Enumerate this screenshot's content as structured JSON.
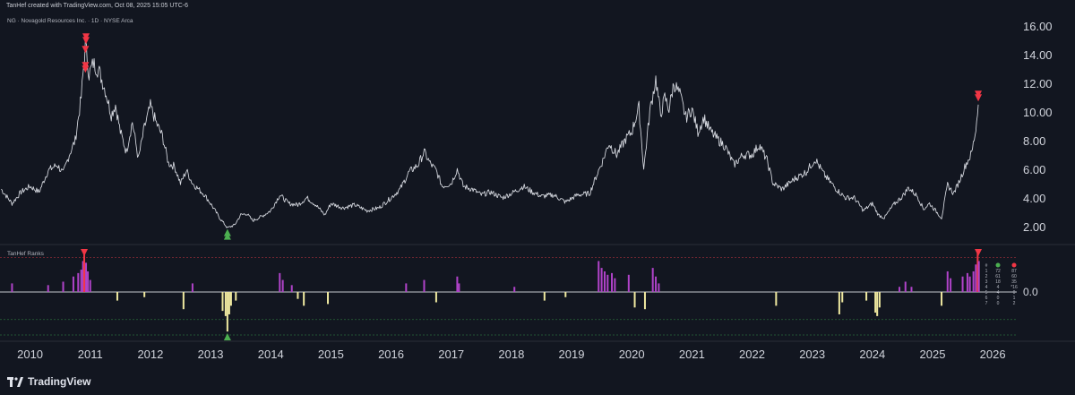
{
  "header": {
    "credit": "TanHef created with TradingView.com, Oct 08, 2025 15:05 UTC-6"
  },
  "main_pane": {
    "symbol_label": "NG · Novagold Resources Inc. · 1D · NYSE Arca"
  },
  "indicator_pane": {
    "label": "TanHef Ranks",
    "zero_label": "0.0"
  },
  "footer": {
    "brand": "TradingView"
  },
  "colors": {
    "background": "#121620",
    "price_line": "#d8dbe2",
    "sell_signal": "#f23645",
    "buy_signal": "#4caf50",
    "pos_bar": "#b043c9",
    "neg_bar": "#efe9a0"
  },
  "chart_data": [
    {
      "type": "line",
      "title": "NG · Novagold Resources Inc. · 1D · NYSE Arca",
      "ylim": [
        0.8,
        16.8
      ],
      "y_ticks": [
        2,
        4,
        6,
        8,
        10,
        12,
        14,
        16
      ],
      "y_tick_labels": [
        "2.00",
        "4.00",
        "6.00",
        "8.00",
        "10.00",
        "12.00",
        "14.00",
        "16.00"
      ],
      "x_range": [
        2009.5,
        2026.4
      ],
      "x_ticks": [
        2010,
        2011,
        2012,
        2013,
        2014,
        2015,
        2016,
        2017,
        2018,
        2019,
        2020,
        2021,
        2022,
        2023,
        2024,
        2025,
        2026
      ],
      "x_tick_labels": [
        "2010",
        "2011",
        "2012",
        "2013",
        "2014",
        "2015",
        "2016",
        "2017",
        "2018",
        "2019",
        "2020",
        "2021",
        "2022",
        "2023",
        "2024",
        "2025",
        "2026"
      ],
      "series": [
        {
          "points": [
            [
              2009.52,
              4.6
            ],
            [
              2009.7,
              3.6
            ],
            [
              2009.85,
              4.4
            ],
            [
              2010.0,
              4.8
            ],
            [
              2010.15,
              4.4
            ],
            [
              2010.3,
              5.9
            ],
            [
              2010.45,
              6.3
            ],
            [
              2010.55,
              5.7
            ],
            [
              2010.65,
              7.0
            ],
            [
              2010.75,
              8.0
            ],
            [
              2010.85,
              11.0
            ],
            [
              2010.92,
              14.8
            ],
            [
              2010.98,
              12.6
            ],
            [
              2011.05,
              13.4
            ],
            [
              2011.15,
              12.8
            ],
            [
              2011.25,
              11.5
            ],
            [
              2011.35,
              9.8
            ],
            [
              2011.42,
              10.5
            ],
            [
              2011.5,
              8.6
            ],
            [
              2011.6,
              7.2
            ],
            [
              2011.7,
              9.3
            ],
            [
              2011.8,
              6.7
            ],
            [
              2011.9,
              8.9
            ],
            [
              2012.0,
              10.4
            ],
            [
              2012.1,
              9.2
            ],
            [
              2012.2,
              8.3
            ],
            [
              2012.3,
              6.4
            ],
            [
              2012.4,
              6.2
            ],
            [
              2012.5,
              5.0
            ],
            [
              2012.6,
              5.9
            ],
            [
              2012.7,
              5.0
            ],
            [
              2012.8,
              4.6
            ],
            [
              2012.9,
              4.2
            ],
            [
              2013.0,
              3.6
            ],
            [
              2013.15,
              2.6
            ],
            [
              2013.28,
              1.9
            ],
            [
              2013.4,
              2.1
            ],
            [
              2013.5,
              2.8
            ],
            [
              2013.6,
              2.9
            ],
            [
              2013.7,
              2.4
            ],
            [
              2013.85,
              2.7
            ],
            [
              2014.0,
              3.1
            ],
            [
              2014.15,
              4.2
            ],
            [
              2014.3,
              3.6
            ],
            [
              2014.45,
              3.5
            ],
            [
              2014.6,
              4.0
            ],
            [
              2014.75,
              3.5
            ],
            [
              2014.9,
              2.8
            ],
            [
              2015.0,
              3.6
            ],
            [
              2015.2,
              3.3
            ],
            [
              2015.4,
              3.5
            ],
            [
              2015.6,
              3.1
            ],
            [
              2015.8,
              3.3
            ],
            [
              2016.0,
              4.0
            ],
            [
              2016.15,
              4.6
            ],
            [
              2016.3,
              5.8
            ],
            [
              2016.45,
              6.3
            ],
            [
              2016.55,
              7.2
            ],
            [
              2016.65,
              6.4
            ],
            [
              2016.75,
              5.9
            ],
            [
              2016.85,
              4.8
            ],
            [
              2017.0,
              5.0
            ],
            [
              2017.1,
              6.0
            ],
            [
              2017.2,
              4.8
            ],
            [
              2017.35,
              4.6
            ],
            [
              2017.5,
              4.2
            ],
            [
              2017.65,
              4.4
            ],
            [
              2017.85,
              4.0
            ],
            [
              2018.0,
              4.3
            ],
            [
              2018.2,
              4.8
            ],
            [
              2018.35,
              4.4
            ],
            [
              2018.5,
              4.1
            ],
            [
              2018.7,
              4.2
            ],
            [
              2018.9,
              3.7
            ],
            [
              2019.1,
              4.2
            ],
            [
              2019.3,
              4.3
            ],
            [
              2019.42,
              5.6
            ],
            [
              2019.52,
              6.6
            ],
            [
              2019.62,
              7.8
            ],
            [
              2019.75,
              7.0
            ],
            [
              2019.9,
              8.1
            ],
            [
              2020.0,
              8.6
            ],
            [
              2020.12,
              10.3
            ],
            [
              2020.2,
              6.0
            ],
            [
              2020.3,
              10.0
            ],
            [
              2020.4,
              12.3
            ],
            [
              2020.48,
              9.8
            ],
            [
              2020.55,
              11.0
            ],
            [
              2020.62,
              10.2
            ],
            [
              2020.7,
              12.0
            ],
            [
              2020.8,
              11.2
            ],
            [
              2020.9,
              9.6
            ],
            [
              2021.0,
              10.2
            ],
            [
              2021.1,
              8.6
            ],
            [
              2021.2,
              9.6
            ],
            [
              2021.3,
              8.7
            ],
            [
              2021.4,
              8.2
            ],
            [
              2021.55,
              7.6
            ],
            [
              2021.7,
              6.3
            ],
            [
              2021.85,
              7.0
            ],
            [
              2022.0,
              7.0
            ],
            [
              2022.12,
              7.7
            ],
            [
              2022.25,
              6.6
            ],
            [
              2022.35,
              5.0
            ],
            [
              2022.5,
              4.6
            ],
            [
              2022.7,
              5.3
            ],
            [
              2022.9,
              5.8
            ],
            [
              2023.05,
              6.7
            ],
            [
              2023.2,
              5.6
            ],
            [
              2023.4,
              4.6
            ],
            [
              2023.55,
              4.0
            ],
            [
              2023.7,
              4.0
            ],
            [
              2023.85,
              3.1
            ],
            [
              2024.0,
              3.6
            ],
            [
              2024.1,
              2.8
            ],
            [
              2024.2,
              2.6
            ],
            [
              2024.35,
              3.5
            ],
            [
              2024.5,
              4.1
            ],
            [
              2024.6,
              4.7
            ],
            [
              2024.75,
              4.1
            ],
            [
              2024.85,
              3.2
            ],
            [
              2024.95,
              3.6
            ],
            [
              2025.05,
              3.1
            ],
            [
              2025.15,
              2.6
            ],
            [
              2025.25,
              4.9
            ],
            [
              2025.35,
              4.3
            ],
            [
              2025.45,
              5.2
            ],
            [
              2025.55,
              6.3
            ],
            [
              2025.65,
              7.1
            ],
            [
              2025.72,
              8.8
            ],
            [
              2025.76,
              10.5
            ]
          ]
        }
      ],
      "signals": [
        {
          "x": 2010.93,
          "y": 15.1,
          "kind": "sell",
          "label": "double-down"
        },
        {
          "x": 2010.92,
          "y": 14.35,
          "kind": "sell",
          "label": "down"
        },
        {
          "x": 2010.92,
          "y": 13.1,
          "kind": "sell",
          "label": "double-down"
        },
        {
          "x": 2013.28,
          "y": 1.45,
          "kind": "buy",
          "label": "double-up"
        },
        {
          "x": 2025.76,
          "y": 11.1,
          "kind": "sell",
          "label": "double-down"
        }
      ]
    },
    {
      "type": "bar",
      "title": "TanHef Ranks",
      "ylim": [
        -2.5,
        2.5
      ],
      "zero_label": "0.0",
      "reference_levels": [
        2,
        -1.6,
        -2.5
      ],
      "bars": [
        {
          "x": 2009.7,
          "v": 0.5
        },
        {
          "x": 2010.3,
          "v": 0.4
        },
        {
          "x": 2010.55,
          "v": 0.6
        },
        {
          "x": 2010.72,
          "v": 0.9
        },
        {
          "x": 2010.8,
          "v": 1.1
        },
        {
          "x": 2010.85,
          "v": 1.3
        },
        {
          "x": 2010.88,
          "v": 1.8
        },
        {
          "x": 2010.9,
          "v": 2.3
        },
        {
          "x": 2010.93,
          "v": 1.7
        },
        {
          "x": 2010.96,
          "v": 1.2
        },
        {
          "x": 2011.0,
          "v": 0.7
        },
        {
          "x": 2011.45,
          "v": -0.5
        },
        {
          "x": 2011.9,
          "v": -0.3
        },
        {
          "x": 2012.55,
          "v": -1.0
        },
        {
          "x": 2012.7,
          "v": 0.5
        },
        {
          "x": 2013.2,
          "v": -1.1
        },
        {
          "x": 2013.25,
          "v": -1.4
        },
        {
          "x": 2013.28,
          "v": -2.3
        },
        {
          "x": 2013.31,
          "v": -1.3
        },
        {
          "x": 2013.34,
          "v": -0.8
        },
        {
          "x": 2013.42,
          "v": -0.5
        },
        {
          "x": 2014.15,
          "v": 1.1
        },
        {
          "x": 2014.2,
          "v": 0.7
        },
        {
          "x": 2014.35,
          "v": 0.4
        },
        {
          "x": 2014.45,
          "v": -0.4
        },
        {
          "x": 2014.55,
          "v": -0.8
        },
        {
          "x": 2014.95,
          "v": -0.7
        },
        {
          "x": 2016.25,
          "v": 0.5
        },
        {
          "x": 2016.55,
          "v": 0.7
        },
        {
          "x": 2016.75,
          "v": -0.6
        },
        {
          "x": 2017.1,
          "v": 0.9
        },
        {
          "x": 2017.13,
          "v": 0.5
        },
        {
          "x": 2018.05,
          "v": 0.3
        },
        {
          "x": 2018.55,
          "v": -0.5
        },
        {
          "x": 2018.9,
          "v": -0.3
        },
        {
          "x": 2019.45,
          "v": 1.8
        },
        {
          "x": 2019.5,
          "v": 1.4
        },
        {
          "x": 2019.55,
          "v": 1.2
        },
        {
          "x": 2019.6,
          "v": 1.0
        },
        {
          "x": 2019.67,
          "v": 1.1
        },
        {
          "x": 2019.72,
          "v": 0.8
        },
        {
          "x": 2019.95,
          "v": 1.0
        },
        {
          "x": 2020.05,
          "v": -0.9
        },
        {
          "x": 2020.22,
          "v": -1.0
        },
        {
          "x": 2020.35,
          "v": 1.4
        },
        {
          "x": 2020.4,
          "v": 0.9
        },
        {
          "x": 2020.45,
          "v": 0.5
        },
        {
          "x": 2022.4,
          "v": -0.8
        },
        {
          "x": 2023.45,
          "v": -1.3
        },
        {
          "x": 2023.5,
          "v": -0.6
        },
        {
          "x": 2023.9,
          "v": -0.5
        },
        {
          "x": 2024.05,
          "v": -1.2
        },
        {
          "x": 2024.08,
          "v": -1.4
        },
        {
          "x": 2024.12,
          "v": -0.9
        },
        {
          "x": 2024.45,
          "v": 0.3
        },
        {
          "x": 2024.55,
          "v": 0.6
        },
        {
          "x": 2024.65,
          "v": 0.3
        },
        {
          "x": 2025.15,
          "v": -0.8
        },
        {
          "x": 2025.25,
          "v": 1.2
        },
        {
          "x": 2025.3,
          "v": 0.8
        },
        {
          "x": 2025.5,
          "v": 0.9
        },
        {
          "x": 2025.58,
          "v": 1.1
        },
        {
          "x": 2025.62,
          "v": 0.9
        },
        {
          "x": 2025.68,
          "v": 1.2
        },
        {
          "x": 2025.72,
          "v": 1.6
        },
        {
          "x": 2025.75,
          "v": 2.3
        },
        {
          "x": 2025.77,
          "v": 1.8
        }
      ],
      "signals": [
        {
          "x": 2010.9,
          "kind": "sell"
        },
        {
          "x": 2025.76,
          "kind": "sell"
        },
        {
          "x": 2013.28,
          "kind": "buy"
        }
      ],
      "table": {
        "header_icons": [
          "#",
          "green-dot",
          "",
          "red-dot"
        ],
        "rows": [
          [
            "1",
            "72",
            "",
            "87"
          ],
          [
            "2",
            "61",
            "",
            "60"
          ],
          [
            "3",
            "18",
            "",
            "35"
          ],
          [
            "4",
            "4",
            "",
            "*16"
          ],
          [
            "5",
            "4",
            "",
            "0"
          ],
          [
            "6",
            "0",
            "",
            "1"
          ],
          [
            "7",
            "0",
            "",
            "2"
          ]
        ]
      }
    }
  ]
}
